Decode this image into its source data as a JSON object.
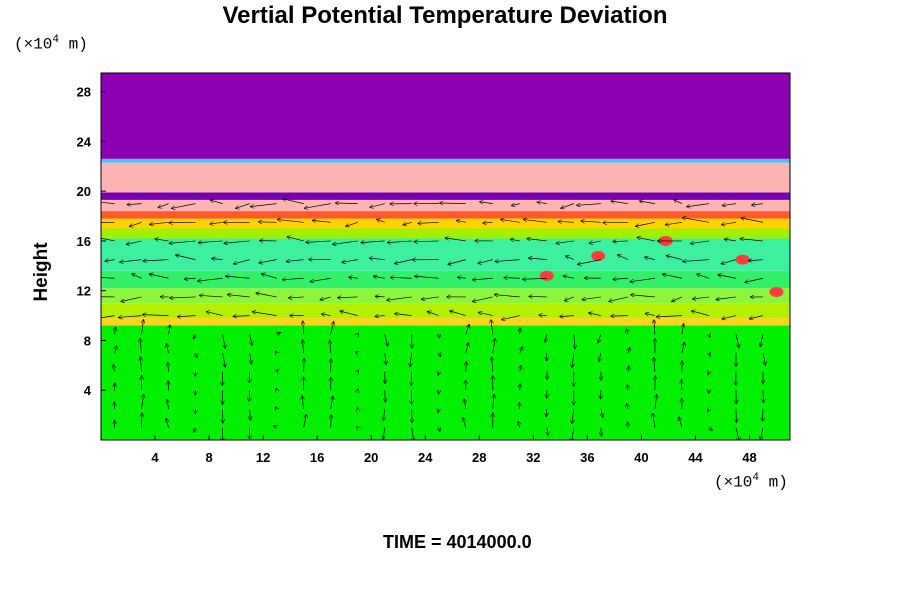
{
  "title": "Vertial Potential Temperature Deviation",
  "y_unit": {
    "prefix": "(×10",
    "exp": "4",
    "suffix": " m)"
  },
  "x_unit": {
    "prefix": "(×10",
    "exp": "4",
    "suffix": " m)"
  },
  "ylabel": "Height",
  "time_label": "TIME = 4014000.0",
  "chart_data": {
    "type": "heatmap",
    "title": "Vertial Potential Temperature Deviation",
    "xlabel": "",
    "ylabel": "Height",
    "x_unit": "×10^4 m",
    "y_unit": "×10^4 m",
    "xlim": [
      0,
      51
    ],
    "ylim": [
      0,
      29.5
    ],
    "x_ticks": [
      4,
      8,
      12,
      16,
      20,
      24,
      28,
      32,
      36,
      40,
      44,
      48
    ],
    "y_ticks": [
      4,
      8,
      12,
      16,
      20,
      24,
      28
    ],
    "bands": [
      {
        "y0": 0,
        "y1": 9.2,
        "color": "#00f000",
        "desc": "green"
      },
      {
        "y0": 9.2,
        "y1": 9.8,
        "color": "#ffd21e",
        "desc": "yellow"
      },
      {
        "y0": 9.8,
        "y1": 11.0,
        "color": "#b4f000",
        "desc": "yellow-green"
      },
      {
        "y0": 11.0,
        "y1": 12.2,
        "color": "#8cf53c",
        "desc": "light green"
      },
      {
        "y0": 12.2,
        "y1": 13.6,
        "color": "#32f068",
        "desc": "green"
      },
      {
        "y0": 13.6,
        "y1": 16.2,
        "color": "#3cf0a0",
        "desc": "aqua green"
      },
      {
        "y0": 16.2,
        "y1": 17.0,
        "color": "#a0f000",
        "desc": "yellow-green"
      },
      {
        "y0": 17.0,
        "y1": 17.8,
        "color": "#ffd200",
        "desc": "yellow"
      },
      {
        "y0": 17.8,
        "y1": 18.4,
        "color": "#ff5a28",
        "desc": "red-orange"
      },
      {
        "y0": 18.4,
        "y1": 19.3,
        "color": "#ffb4b4",
        "desc": "pink"
      },
      {
        "y0": 19.3,
        "y1": 19.9,
        "color": "#7800b4",
        "desc": "purple"
      },
      {
        "y0": 19.9,
        "y1": 22.3,
        "color": "#ffb4b4",
        "desc": "pink"
      },
      {
        "y0": 22.3,
        "y1": 22.6,
        "color": "#3cc8ff",
        "desc": "cyan"
      },
      {
        "y0": 22.6,
        "y1": 29.5,
        "color": "#8c00b4",
        "desc": "purple"
      }
    ],
    "hotspots": [
      {
        "x": 33.0,
        "y": 13.2,
        "color": "#ff3c3c"
      },
      {
        "x": 36.8,
        "y": 14.8,
        "color": "#ff3c3c"
      },
      {
        "x": 41.8,
        "y": 16.0,
        "color": "#ff3c3c"
      },
      {
        "x": 47.5,
        "y": 14.5,
        "color": "#ff3c3c"
      },
      {
        "x": 50.0,
        "y": 11.9,
        "color": "#ff3c3c"
      }
    ],
    "vectors": "wind arrows overlaid across the domain below ~20"
  }
}
